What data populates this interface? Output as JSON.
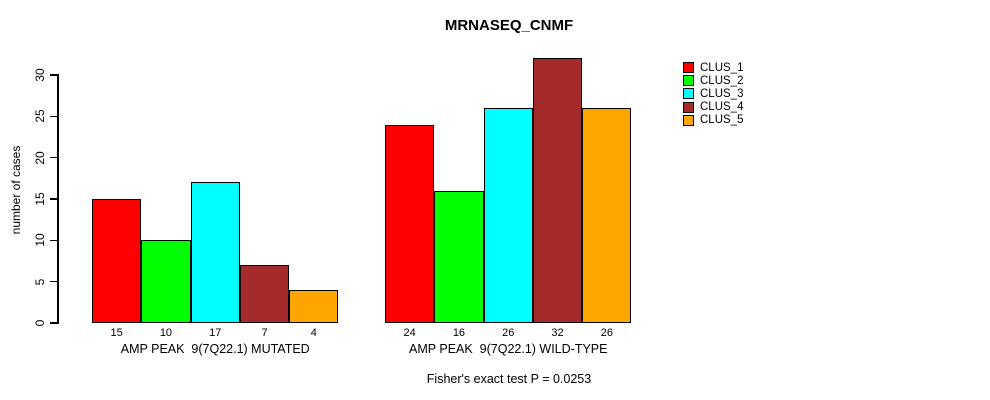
{
  "chart_data": {
    "type": "bar",
    "title": "MRNASEQ_CNMF",
    "ylabel": "number of cases",
    "xlabel": "",
    "ylim": [
      0,
      30
    ],
    "yticks": [
      0,
      5,
      10,
      15,
      20,
      25,
      30
    ],
    "grid": false,
    "legend_position": "right",
    "categories": [
      "AMP PEAK  9(7Q22.1) MUTATED",
      "AMP PEAK  9(7Q22.1) WILD-TYPE"
    ],
    "groups": [
      {
        "label": "AMP PEAK  9(7Q22.1) MUTATED",
        "values": [
          15,
          10,
          17,
          7,
          4
        ]
      },
      {
        "label": "AMP PEAK  9(7Q22.1) WILD-TYPE",
        "values": [
          24,
          16,
          26,
          32,
          26
        ]
      }
    ],
    "series": [
      {
        "name": "CLUS_1",
        "color": "#FF0000"
      },
      {
        "name": "CLUS_2",
        "color": "#00FF00"
      },
      {
        "name": "CLUS_3",
        "color": "#00FFFF"
      },
      {
        "name": "CLUS_4",
        "color": "#A52A2A"
      },
      {
        "name": "CLUS_5",
        "color": "#FFA500"
      }
    ],
    "footer": "Fisher's exact test P = 0.0253"
  }
}
